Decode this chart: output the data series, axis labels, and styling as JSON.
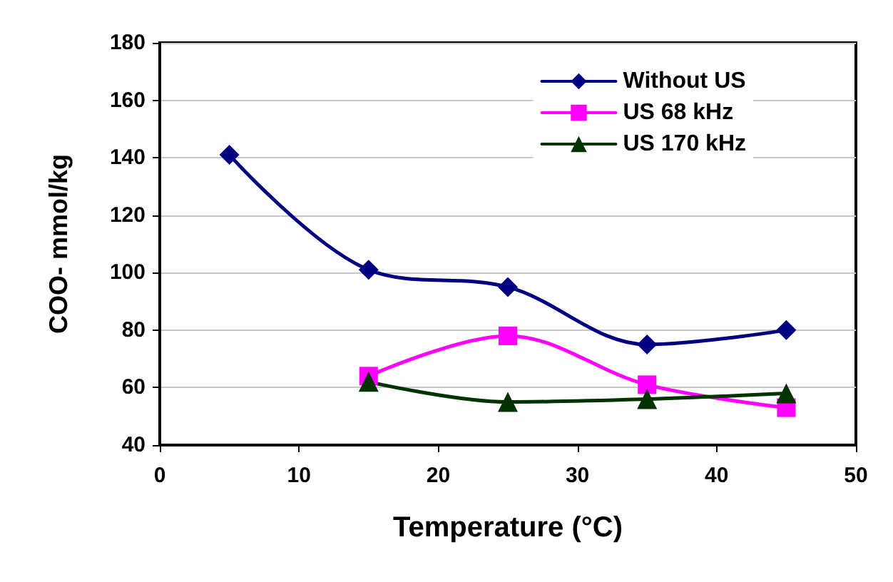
{
  "chart_data": {
    "type": "line",
    "xlabel": "Temperature (°C)",
    "ylabel": "COO- mmol/kg",
    "x": [
      5,
      15,
      25,
      35,
      45
    ],
    "series": [
      {
        "name": "Without US",
        "color": "#000080",
        "marker": "diamond",
        "values": [
          141,
          101,
          95,
          75,
          80
        ]
      },
      {
        "name": "US 68 kHz",
        "color": "#ff00ff",
        "marker": "square",
        "values": [
          null,
          64,
          78,
          61,
          53
        ]
      },
      {
        "name": "US 170 kHz",
        "color": "#003300",
        "marker": "triangle",
        "values": [
          null,
          62,
          55,
          56,
          58
        ]
      }
    ],
    "xlim": [
      0,
      50
    ],
    "xticks": [
      0,
      10,
      20,
      30,
      40,
      50
    ],
    "ylim": [
      40,
      180
    ],
    "yticks": [
      40,
      60,
      80,
      100,
      120,
      140,
      160,
      180
    ],
    "grid": "y",
    "legend": "top right",
    "line_style": "solid"
  }
}
